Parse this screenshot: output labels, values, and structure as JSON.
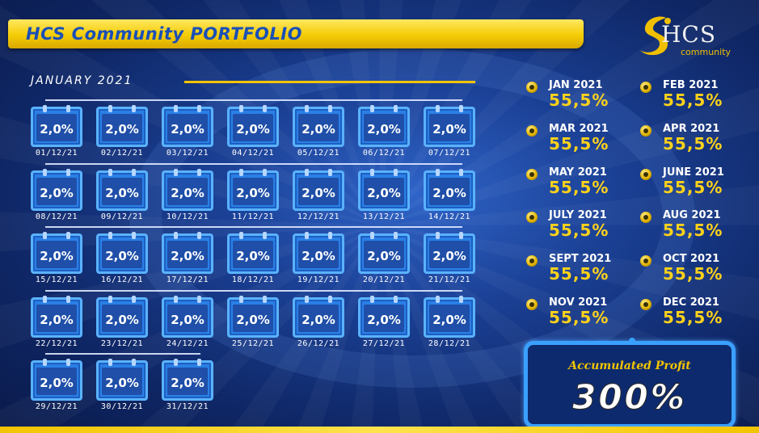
{
  "header": {
    "title": "HCS Community PORTFOLIO"
  },
  "logo": {
    "name": "HCS",
    "sub": "community"
  },
  "calendar": {
    "month_label": "JANUARY 2021",
    "days": [
      {
        "value": "2,0%",
        "date": "01/12/21"
      },
      {
        "value": "2,0%",
        "date": "02/12/21"
      },
      {
        "value": "2,0%",
        "date": "03/12/21"
      },
      {
        "value": "2,0%",
        "date": "04/12/21"
      },
      {
        "value": "2,0%",
        "date": "05/12/21"
      },
      {
        "value": "2,0%",
        "date": "06/12/21"
      },
      {
        "value": "2,0%",
        "date": "07/12/21"
      },
      {
        "value": "2,0%",
        "date": "08/12/21"
      },
      {
        "value": "2,0%",
        "date": "09/12/21"
      },
      {
        "value": "2,0%",
        "date": "10/12/21"
      },
      {
        "value": "2,0%",
        "date": "11/12/21"
      },
      {
        "value": "2,0%",
        "date": "12/12/21"
      },
      {
        "value": "2,0%",
        "date": "13/12/21"
      },
      {
        "value": "2,0%",
        "date": "14/12/21"
      },
      {
        "value": "2,0%",
        "date": "15/12/21"
      },
      {
        "value": "2,0%",
        "date": "16/12/21"
      },
      {
        "value": "2,0%",
        "date": "17/12/21"
      },
      {
        "value": "2,0%",
        "date": "18/12/21"
      },
      {
        "value": "2,0%",
        "date": "19/12/21"
      },
      {
        "value": "2,0%",
        "date": "20/12/21"
      },
      {
        "value": "2,0%",
        "date": "21/12/21"
      },
      {
        "value": "2,0%",
        "date": "22/12/21"
      },
      {
        "value": "2,0%",
        "date": "23/12/21"
      },
      {
        "value": "2,0%",
        "date": "24/12/21"
      },
      {
        "value": "2,0%",
        "date": "25/12/21"
      },
      {
        "value": "2,0%",
        "date": "26/12/21"
      },
      {
        "value": "2,0%",
        "date": "27/12/21"
      },
      {
        "value": "2,0%",
        "date": "28/12/21"
      },
      {
        "value": "2,0%",
        "date": "29/12/21"
      },
      {
        "value": "2,0%",
        "date": "30/12/21"
      },
      {
        "value": "2,0%",
        "date": "31/12/21"
      }
    ]
  },
  "monthly": [
    {
      "name": "JAN 2021",
      "value": "55,5%"
    },
    {
      "name": "FEB 2021",
      "value": "55,5%"
    },
    {
      "name": "MAR 2021",
      "value": "55,5%"
    },
    {
      "name": "APR 2021",
      "value": "55,5%"
    },
    {
      "name": "MAY 2021",
      "value": "55,5%"
    },
    {
      "name": "JUNE 2021",
      "value": "55,5%"
    },
    {
      "name": "JULY 2021",
      "value": "55,5%"
    },
    {
      "name": "AUG 2021",
      "value": "55,5%"
    },
    {
      "name": "SEPT 2021",
      "value": "55,5%"
    },
    {
      "name": "OCT 2021",
      "value": "55,5%"
    },
    {
      "name": "NOV 2021",
      "value": "55,5%"
    },
    {
      "name": "DEC 2021",
      "value": "55,5%"
    }
  ],
  "accumulated": {
    "label": "Accumulated Profit",
    "value": "300%"
  },
  "colors": {
    "accent_yellow": "#f3c400",
    "title_blue": "#1a4fb8",
    "background_blue": "#1a3f93",
    "calendar_blue": "#2a7fe6"
  }
}
